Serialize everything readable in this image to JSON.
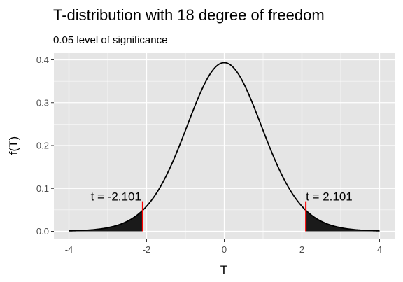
{
  "chart_data": {
    "type": "area",
    "title": "T-distribution with 18 degree of freedom",
    "subtitle": "0.05 level of significance",
    "xlabel": "T",
    "ylabel": "f(T)",
    "df": 18,
    "xlim": [
      -4,
      4
    ],
    "ylim": [
      0,
      0.4
    ],
    "x_ticks": [
      -4,
      -2,
      0,
      2,
      4
    ],
    "x_tick_labels": [
      "-4",
      "-2",
      "0",
      "2",
      "4"
    ],
    "y_ticks": [
      0.0,
      0.1,
      0.2,
      0.3,
      0.4
    ],
    "y_tick_labels": [
      "0.0",
      "0.1",
      "0.2",
      "0.3",
      "0.4"
    ],
    "grid": true,
    "critical_values": [
      -2.101,
      2.101
    ],
    "critical_line_top": 0.07,
    "annotations": [
      {
        "text": "t =  -2.101",
        "x": -2.101
      },
      {
        "text": "t =  2.101",
        "x": 2.101
      }
    ],
    "colors": {
      "panel_background": "#e5e5e5",
      "grid": "#ffffff",
      "curve": "#000000",
      "shade": "#1a1a1a",
      "critical_line": "#ff0000"
    }
  }
}
